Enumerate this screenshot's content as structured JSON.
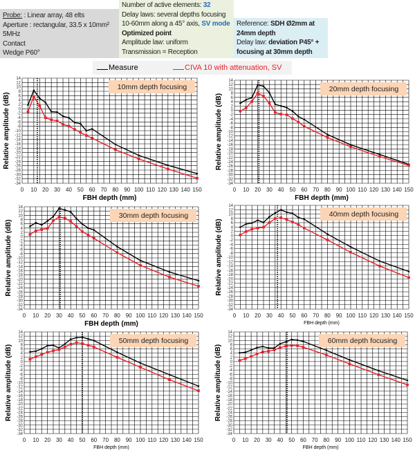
{
  "header": {
    "probe": {
      "label": "Probe:",
      "text": " : Linear array, 48 elts",
      "lines": [
        "Aperture : rectangular, 33.5 x 10mm²",
        "5MHz",
        "Contact",
        "Wedge P60°"
      ]
    },
    "laws": {
      "active_label": "Number of active elements: ",
      "active_value": "32",
      "delay1": "Delay laws: several depths focusing",
      "delay2": "10-60mm along a 45° axis, ",
      "mode": "SV mode",
      "optimized": "Optimized point",
      "amp": "Amplitude law: uniform",
      "trans": "Transmission = Reception"
    },
    "reference": {
      "label": "Reference: ",
      "value": "SDH Ø2mm at 24mm  depth",
      "delay_label": "Delay law: ",
      "delay_value": "deviation P45° + focusing at 30mm depth"
    }
  },
  "legend": {
    "measure": "Measure",
    "civa": "CIVA 10 with attenuation, SV waves"
  },
  "colors": {
    "measure": "#000000",
    "civa": "#e8202a",
    "title_box": "#fbd5b5"
  },
  "chart_data": [
    {
      "type": "line",
      "title": "10mm depth focusing",
      "xlabel": "FBH depth (mm)",
      "ylabel": "Relative amplitude (dB)",
      "xlim": [
        0,
        150
      ],
      "ylim": [
        -34,
        14
      ],
      "grid": true,
      "focus_line_x": 13,
      "x": [
        5,
        10,
        15,
        20,
        25,
        30,
        35,
        40,
        45,
        50,
        55,
        60,
        80,
        100,
        125,
        150
      ],
      "series": [
        {
          "name": "Measure",
          "values": [
            1.7,
            8.4,
            4.8,
            2.9,
            -1.3,
            -1.5,
            -3.4,
            -4.1,
            -6.3,
            -6.8,
            -10,
            -9.2,
            -16.3,
            -21.3,
            -25.8,
            -29.6
          ]
        },
        {
          "name": "CIVA 10 with attenuation, SV waves",
          "values": [
            -1.3,
            5.6,
            1.3,
            -4.1,
            -5,
            -5.5,
            -7.1,
            -7.9,
            -9.4,
            -10.8,
            -12.2,
            -13.4,
            -18.7,
            -22.9,
            -27.5,
            -31.7
          ]
        }
      ]
    },
    {
      "type": "line",
      "title": "20mm depth focusing",
      "xlabel": "FBH depth (mm)",
      "ylabel": "Relative amplitude (dB)",
      "xlim": [
        0,
        150
      ],
      "ylim": [
        -34,
        14
      ],
      "grid": true,
      "focus_line_x": 21,
      "x": [
        5,
        10,
        15,
        20,
        25,
        30,
        35,
        40,
        45,
        50,
        55,
        60,
        80,
        100,
        125,
        150
      ],
      "series": [
        {
          "name": "Measure",
          "values": [
            3.3,
            4.9,
            5.9,
            11.8,
            11.2,
            8.2,
            2.8,
            2,
            1.2,
            -0.4,
            -2.9,
            -4.3,
            -11.3,
            -16.1,
            -20.6,
            -25.2
          ]
        },
        {
          "name": "CIVA 10 with attenuation, SV waves",
          "values": [
            -0.4,
            1.1,
            4.1,
            7.9,
            6.6,
            3.3,
            -1,
            -1.8,
            -2.1,
            -3.9,
            -5.5,
            -7.5,
            -12.7,
            -17,
            -21.6,
            -25.7
          ]
        }
      ]
    },
    {
      "type": "line",
      "title": "30mm depth focusing",
      "xlabel": "FBH depth (mm)",
      "ylabel": "Relative amplitude (dB)",
      "xlim": [
        0,
        150
      ],
      "ylim": [
        -34,
        14
      ],
      "grid": true,
      "focus_line_x": 31,
      "x": [
        5,
        10,
        15,
        20,
        25,
        30,
        35,
        40,
        45,
        50,
        55,
        60,
        80,
        100,
        125,
        150
      ],
      "series": [
        {
          "name": "Measure",
          "values": [
            4.8,
            6.5,
            5.5,
            7.3,
            9.4,
            13.2,
            12.5,
            11.6,
            8.4,
            5.9,
            4,
            3.1,
            -4.7,
            -11.2,
            -16.6,
            -20.7
          ]
        },
        {
          "name": "CIVA 10 with attenuation, SV waves",
          "values": [
            1,
            2.7,
            3.3,
            3.8,
            7.5,
            9.1,
            8.7,
            7.1,
            4.8,
            2.3,
            0.8,
            -0.8,
            -7.5,
            -13.5,
            -19,
            -23.3
          ]
        }
      ]
    },
    {
      "type": "line",
      "title": "40mm depth focusing",
      "xlabel": "FBH depth (mm)",
      "ylabel": "Relative amplitude (dB)",
      "xlim": [
        0,
        150
      ],
      "ylim": [
        -34,
        14
      ],
      "grid": true,
      "focus_line_x": 37,
      "x": [
        5,
        10,
        15,
        20,
        25,
        30,
        35,
        40,
        45,
        50,
        55,
        60,
        80,
        100,
        125,
        150
      ],
      "series": [
        {
          "name": "Measure",
          "values": [
            3.9,
            5.4,
            5.8,
            7.1,
            6.1,
            8.7,
            10.5,
            11.9,
            10.8,
            10.3,
            8.4,
            7.6,
            0.7,
            -5.2,
            -11.8,
            -16.6
          ]
        },
        {
          "name": "CIVA 10 with attenuation, SV waves",
          "values": [
            0.3,
            1.9,
            3,
            3.5,
            3.9,
            6,
            7.9,
            8.3,
            7.4,
            6.3,
            5.1,
            3.5,
            -2,
            -7.7,
            -14.1,
            -19.4
          ]
        }
      ]
    },
    {
      "type": "line",
      "title": "50mm depth focusing",
      "xlabel": "FBH depth (mm)",
      "ylabel": "Relative amplitude (dB)",
      "xlim": [
        0,
        150
      ],
      "ylim": [
        -34,
        14
      ],
      "grid": true,
      "focus_line_x": 50,
      "x": [
        5,
        10,
        15,
        20,
        25,
        30,
        35,
        40,
        45,
        50,
        55,
        60,
        80,
        100,
        125,
        150
      ],
      "series": [
        {
          "name": "Measure",
          "values": [
            4.6,
            4.9,
            6,
            7.5,
            7.7,
            6.4,
            8.3,
            10.5,
            11.3,
            11.5,
            10.7,
            9.9,
            4.4,
            -0.7,
            -6.2,
            -11.6
          ]
        },
        {
          "name": "CIVA 10 with attenuation, SV waves",
          "values": [
            1.1,
            2.3,
            3.3,
            4.4,
            5.1,
            5.6,
            6.9,
            8.2,
            8.9,
            8.5,
            7.7,
            6.9,
            2,
            -2.7,
            -8.6,
            -13.8
          ]
        }
      ]
    },
    {
      "type": "line",
      "title": "60mm depth focusing",
      "xlabel": "FBH depth (mm)",
      "ylabel": "Relative amplitude (dB)",
      "xlim": [
        0,
        150
      ],
      "ylim": [
        -34,
        14
      ],
      "grid": true,
      "focus_line_x": 46,
      "x": [
        5,
        10,
        15,
        20,
        25,
        30,
        35,
        40,
        45,
        50,
        55,
        60,
        80,
        100,
        125,
        150
      ],
      "series": [
        {
          "name": "Measure",
          "values": [
            4.1,
            4.4,
            5.4,
            6.6,
            7.1,
            6.4,
            6.4,
            8.4,
            9.3,
            10.4,
            10.1,
            9.5,
            5.3,
            0.8,
            -4.3,
            -8.9
          ]
        },
        {
          "name": "CIVA 10 with attenuation, SV waves",
          "values": [
            0.5,
            1.4,
            2.4,
            3.6,
            4.6,
            4.9,
            5.5,
            6.6,
            7.3,
            7.6,
            7.5,
            6.8,
            3.1,
            -1.1,
            -6.2,
            -11
          ]
        }
      ]
    }
  ]
}
